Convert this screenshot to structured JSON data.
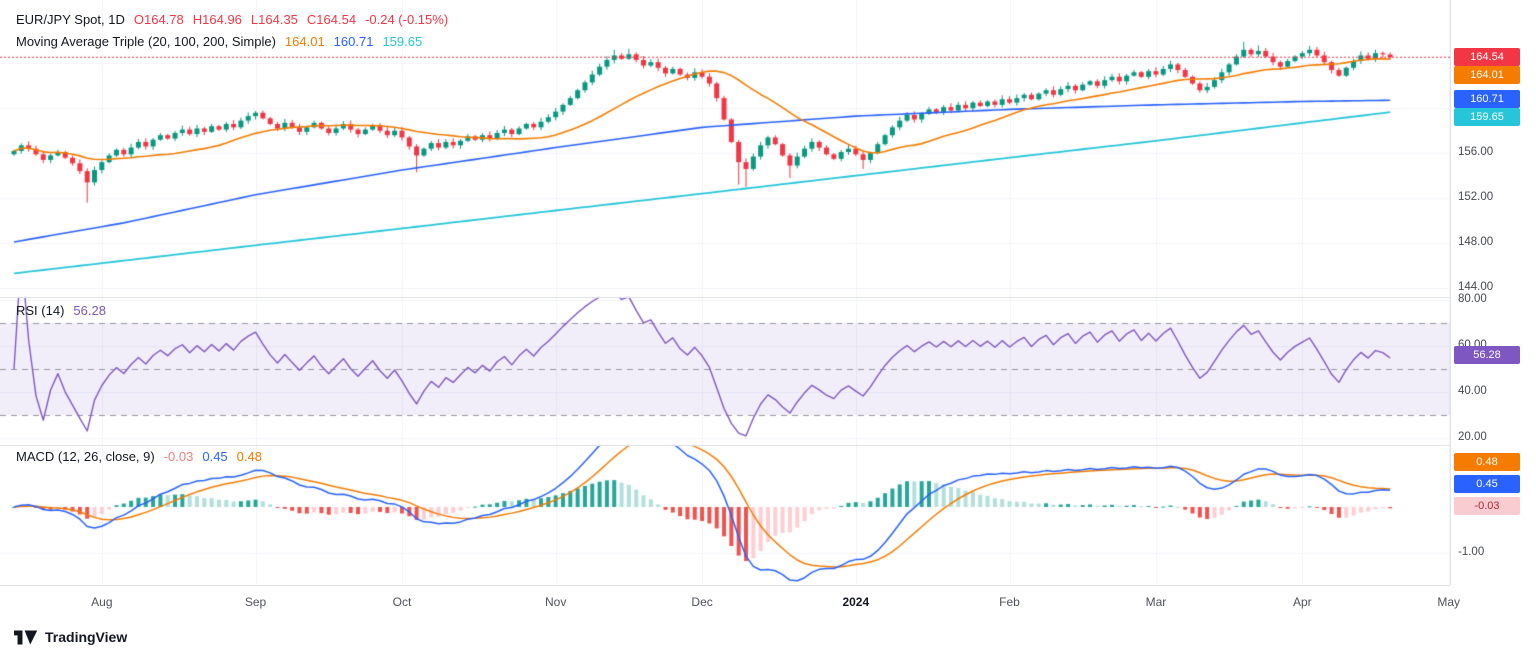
{
  "header": {
    "symbol_title": "EUR/JPY Spot, 1D",
    "ohlc_segments": [
      "O164.78",
      "H164.96",
      "L164.35",
      "C164.54"
    ],
    "change": "-0.24 (-0.15%)",
    "ma_title": "Moving Average Triple (20, 100, 200, Simple)",
    "ma_values": [
      "164.01",
      "160.71",
      "159.65"
    ]
  },
  "rsi_legend": {
    "title": "RSI (14)",
    "value": "56.28"
  },
  "macd_legend": {
    "title": "MACD (12, 26, close, 9)",
    "hist": "-0.03",
    "macd": "0.45",
    "signal": "0.48"
  },
  "watermark": "TradingView",
  "chart_data": {
    "type": "candlestick",
    "title": "EUR/JPY Spot, 1D",
    "x_axis": {
      "months": [
        {
          "label": "Aug",
          "i": 12
        },
        {
          "label": "Sep",
          "i": 33
        },
        {
          "label": "Oct",
          "i": 53
        },
        {
          "label": "Nov",
          "i": 74
        },
        {
          "label": "Dec",
          "i": 94
        },
        {
          "label": "2024",
          "i": 115,
          "bold": true
        },
        {
          "label": "Feb",
          "i": 136
        },
        {
          "label": "Mar",
          "i": 156
        },
        {
          "label": "Apr",
          "i": 176
        },
        {
          "label": "May",
          "i": 196
        }
      ]
    },
    "price_panel": {
      "ylim": [
        143.2,
        169.1
      ],
      "grid_values": [
        144,
        148,
        152,
        156,
        160,
        164
      ],
      "ticks": [
        {
          "value": 156,
          "label": "156.00"
        },
        {
          "value": 152,
          "label": "152.00"
        },
        {
          "value": 148,
          "label": "148.00"
        },
        {
          "value": 144,
          "label": "144.00"
        }
      ],
      "current_price": {
        "value": 164.54,
        "label": "164.54",
        "color": "#f23645"
      },
      "up_color": "#089981",
      "down_color": "#f23645",
      "candles": {
        "first_open": 155.9,
        "closes": [
          156.2,
          156.7,
          156.4,
          155.9,
          155.4,
          155.8,
          156.1,
          155.6,
          155.1,
          154.4,
          153.4,
          154.5,
          155.2,
          155.8,
          156.3,
          155.9,
          156.5,
          157.0,
          156.6,
          157.2,
          157.6,
          157.3,
          157.8,
          158.1,
          157.7,
          158.2,
          157.9,
          158.4,
          158.1,
          158.6,
          158.3,
          158.9,
          159.3,
          159.6,
          159.1,
          158.6,
          158.2,
          158.7,
          158.3,
          157.9,
          158.3,
          158.7,
          158.2,
          157.8,
          158.2,
          158.6,
          158.1,
          157.7,
          158.1,
          158.5,
          158.0,
          157.6,
          158.0,
          157.4,
          156.6,
          155.8,
          156.4,
          156.9,
          156.5,
          157.0,
          156.7,
          157.1,
          157.5,
          157.2,
          157.6,
          157.3,
          157.8,
          158.1,
          157.7,
          158.2,
          158.6,
          158.3,
          158.8,
          159.2,
          159.7,
          160.3,
          160.9,
          161.6,
          162.3,
          163.0,
          163.7,
          164.3,
          164.7,
          164.4,
          164.8,
          164.3,
          163.8,
          164.1,
          163.6,
          163.1,
          163.5,
          163.0,
          162.7,
          163.2,
          162.8,
          162.2,
          160.9,
          159.0,
          157.0,
          155.2,
          154.6,
          155.7,
          156.7,
          157.4,
          156.8,
          155.8,
          154.9,
          155.7,
          156.4,
          157.0,
          156.5,
          155.9,
          155.5,
          156.1,
          156.4,
          155.9,
          155.4,
          156.0,
          156.8,
          157.6,
          158.3,
          158.9,
          159.4,
          159.0,
          159.5,
          159.9,
          159.6,
          160.1,
          159.8,
          160.3,
          160.0,
          160.5,
          160.2,
          160.6,
          160.3,
          160.8,
          160.5,
          160.9,
          161.2,
          160.8,
          161.3,
          161.6,
          161.2,
          161.7,
          162.0,
          161.6,
          162.1,
          162.4,
          162.0,
          162.5,
          162.8,
          162.4,
          162.9,
          163.2,
          162.8,
          163.3,
          163.0,
          163.5,
          163.9,
          163.4,
          162.8,
          162.2,
          161.6,
          161.9,
          162.5,
          163.2,
          163.9,
          164.6,
          165.2,
          164.8,
          165.1,
          164.6,
          164.1,
          163.7,
          164.2,
          164.6,
          164.9,
          165.2,
          164.7,
          164.1,
          163.4,
          162.9,
          163.6,
          164.2,
          164.7,
          164.4,
          164.9,
          164.8,
          164.54
        ],
        "wick_lows": [
          {
            "i": 10,
            "low": 151.6
          },
          {
            "i": 55,
            "low": 154.3
          },
          {
            "i": 99,
            "low": 153.2
          },
          {
            "i": 100,
            "low": 153.0
          },
          {
            "i": 106,
            "low": 153.8
          },
          {
            "i": 116,
            "low": 154.6
          }
        ],
        "wick_highs": [
          {
            "i": 82,
            "high": 165.2
          },
          {
            "i": 84,
            "high": 165.3
          },
          {
            "i": 168,
            "high": 165.9
          },
          {
            "i": 170,
            "high": 165.6
          }
        ],
        "last": {
          "o": 164.78,
          "h": 164.96,
          "l": 164.35,
          "c": 164.54
        }
      },
      "ma20": {
        "period": 20,
        "value": 164.01,
        "color": "#f57c00"
      },
      "ma100": {
        "period": 100,
        "value": 160.71,
        "color": "#2962ff",
        "points": [
          [
            0,
            148.1
          ],
          [
            15,
            149.8
          ],
          [
            33,
            152.3
          ],
          [
            53,
            154.5
          ],
          [
            74,
            156.5
          ],
          [
            94,
            158.3
          ],
          [
            115,
            159.3
          ],
          [
            136,
            159.9
          ],
          [
            156,
            160.3
          ],
          [
            176,
            160.6
          ],
          [
            188,
            160.71
          ]
        ]
      },
      "ma200": {
        "period": 200,
        "value": 159.65,
        "color": "#26c6da",
        "points": [
          [
            0,
            145.3
          ],
          [
            33,
            147.8
          ],
          [
            53,
            149.3
          ],
          [
            74,
            150.9
          ],
          [
            94,
            152.4
          ],
          [
            115,
            154.0
          ],
          [
            136,
            155.6
          ],
          [
            156,
            157.1
          ],
          [
            176,
            158.7
          ],
          [
            188,
            159.65
          ]
        ]
      },
      "badges": [
        {
          "label": "164.54",
          "bg": "#f23645",
          "fg": "#ffffff",
          "y": 57
        },
        {
          "label": "164.01",
          "bg": "#f57c00",
          "fg": "#ffffff",
          "y": 75
        },
        {
          "label": "160.71",
          "bg": "#2962ff",
          "fg": "#ffffff",
          "y": 99
        },
        {
          "label": "159.65",
          "bg": "#26c6da",
          "fg": "#ffffff",
          "y": 117
        }
      ]
    },
    "rsi_panel": {
      "period": 14,
      "value": 56.28,
      "line_color": "#7e57c2",
      "ylim": [
        17.0,
        81.3
      ],
      "band": {
        "upper": 70,
        "mid": 50,
        "lower": 30,
        "fill": "rgba(126,87,194,0.10)",
        "line_color": "#9598a1"
      },
      "ticks": [
        {
          "value": 80,
          "label": "80.00"
        },
        {
          "value": 60,
          "label": "60.00"
        },
        {
          "value": 40,
          "label": "40.00"
        },
        {
          "value": 20,
          "label": "20.00"
        }
      ],
      "badges": [
        {
          "label": "56.28",
          "bg": "#7e57c2",
          "fg": "#ffffff",
          "y": 355
        }
      ]
    },
    "macd_panel": {
      "fast": 12,
      "slow": 26,
      "source": "close",
      "signal_period": 9,
      "hist_value": -0.03,
      "macd_value": 0.45,
      "signal_value": 0.48,
      "ylim": [
        -1.7,
        1.35
      ],
      "macd_color": "#2962ff",
      "signal_color": "#f57c00",
      "hist_colors": {
        "up_grow": "#26a69a",
        "up_fall": "#b2dfdb",
        "down_fall": "#ef5350",
        "down_grow": "#ffcdd2"
      },
      "ticks": [
        {
          "value": -1,
          "label": "-1.00"
        }
      ],
      "badges": [
        {
          "label": "0.48",
          "bg": "#f57c00",
          "fg": "#ffffff",
          "y": 462
        },
        {
          "label": "0.45",
          "bg": "#2962ff",
          "fg": "#ffffff",
          "y": 484
        },
        {
          "label": "-0.03",
          "bg": "#f8ccd0",
          "fg": "#b22833",
          "y": 506
        }
      ]
    }
  }
}
